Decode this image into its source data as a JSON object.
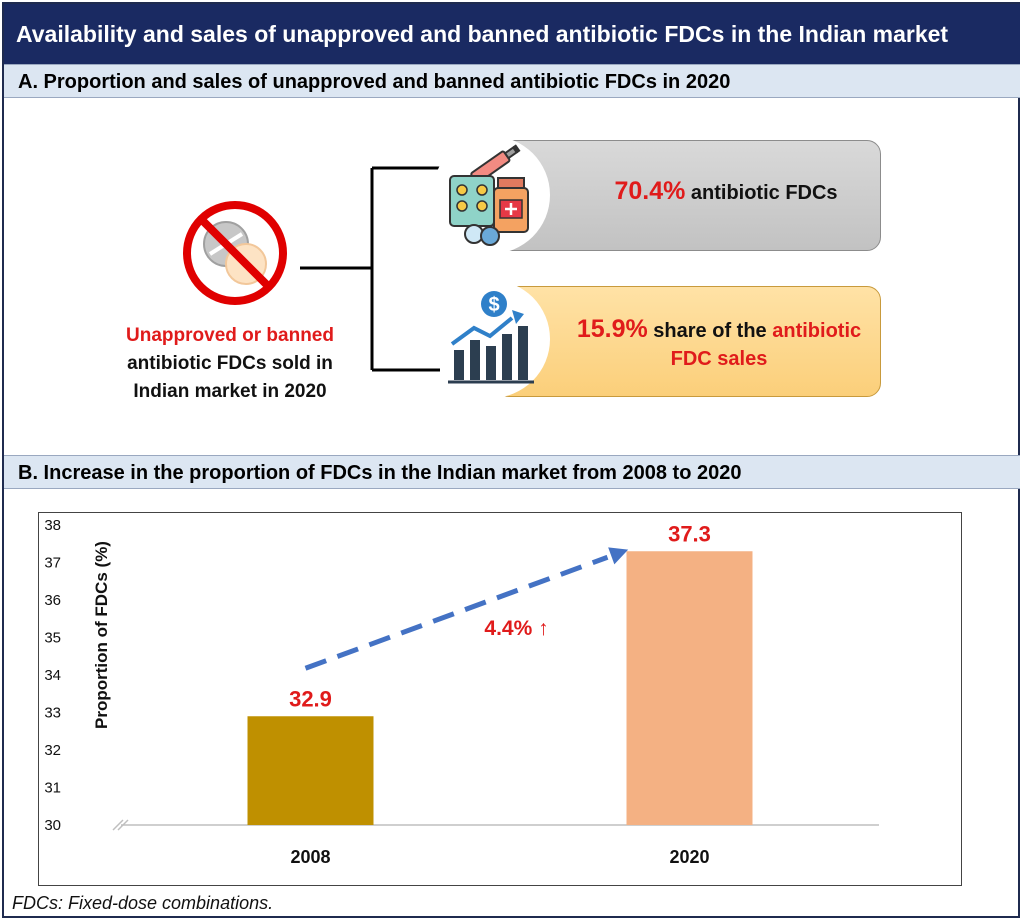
{
  "title": "Availability and sales of unapproved and banned antibiotic FDCs in the Indian market",
  "section_a": {
    "heading": "A.  Proportion and sales of unapproved and banned antibiotic FDCs in 2020",
    "caption_red": "Unapproved or banned",
    "caption_line2": "antibiotic FDCs sold in",
    "caption_line3": "Indian market in 2020",
    "card1": {
      "value": "70.4%",
      "label": " antibiotic FDCs",
      "icon": "medicine-icon"
    },
    "card2": {
      "value": "15.9%",
      "label_black": " share of the ",
      "label_red1": "antibiotic",
      "label_red2": "FDC sales",
      "icon": "sales-growth-icon"
    },
    "banned_icon": "banned-pill-icon"
  },
  "section_b": {
    "heading": "B.  Increase in the proportion of FDCs in the Indian market from 2008 to 2020"
  },
  "chart_data": {
    "type": "bar",
    "categories": [
      "2008",
      "2020"
    ],
    "values": [
      32.9,
      37.3
    ],
    "data_labels": [
      "32.9",
      "37.3"
    ],
    "ylabel": "Proportion of FDCs (%)",
    "ylim": [
      30,
      38
    ],
    "yticks": [
      30,
      31,
      32,
      33,
      34,
      35,
      36,
      37,
      38
    ],
    "colors": [
      "#bf9000",
      "#f4b183"
    ],
    "annotation": "4.4% ↑",
    "annotation_color": "#e01b1b",
    "arrow_color": "#4472c4",
    "axis_break": true
  },
  "footnote": "FDCs: Fixed-dose combinations."
}
